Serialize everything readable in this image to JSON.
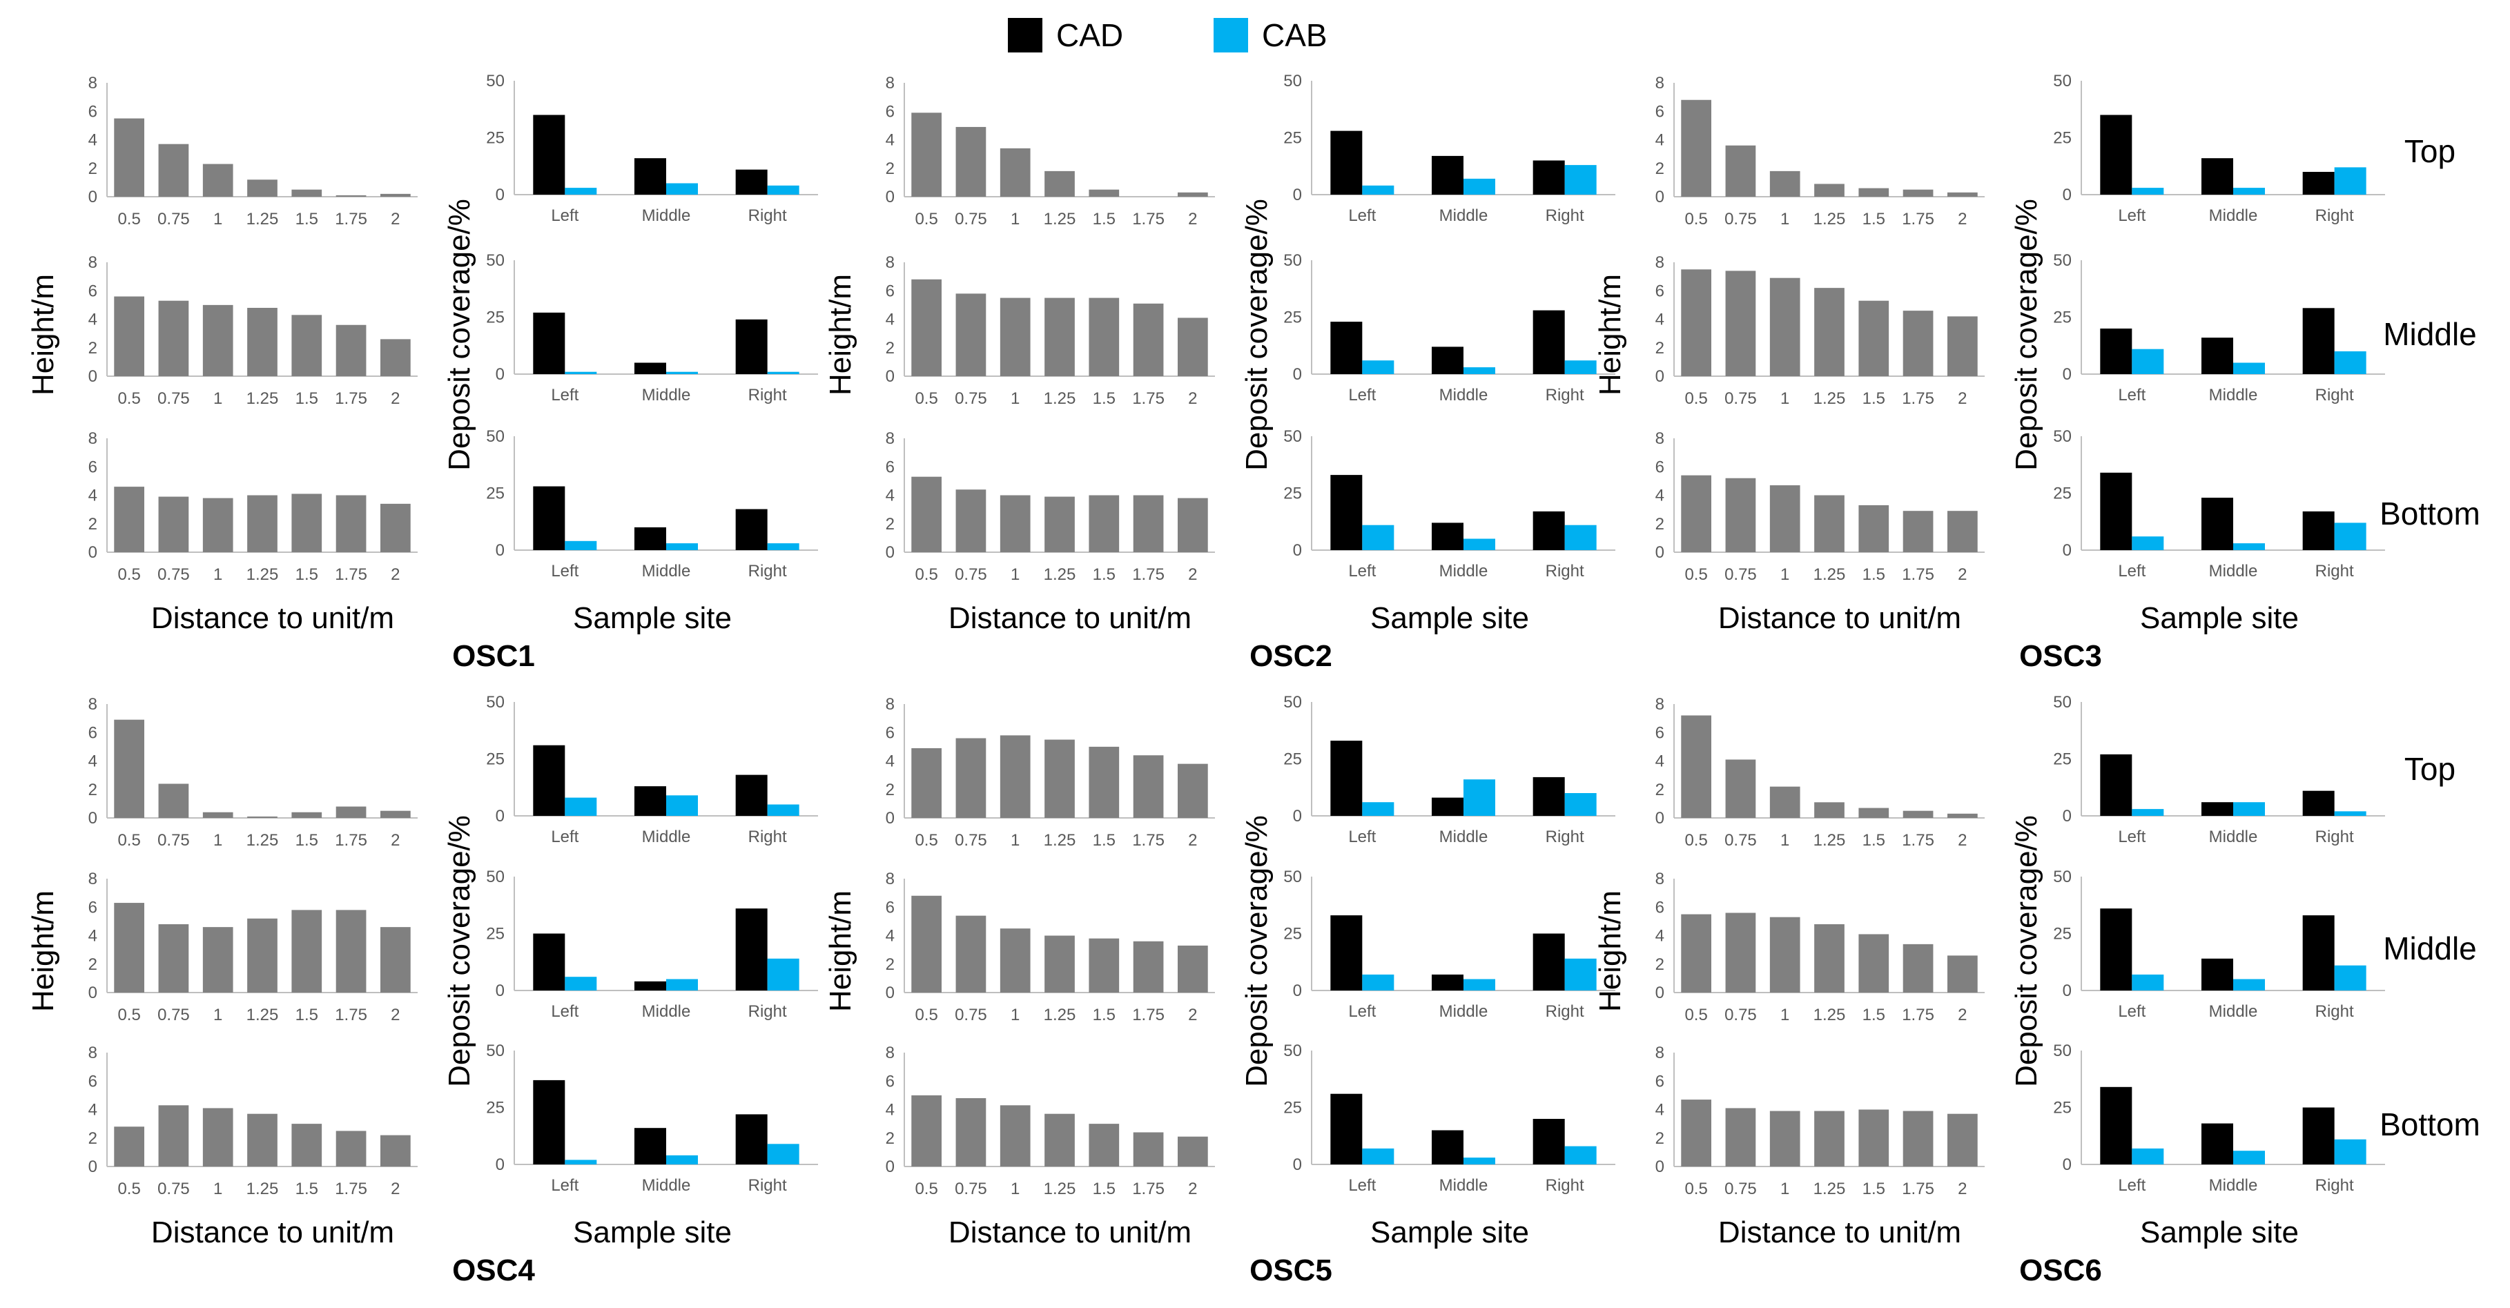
{
  "colors": {
    "bar": "#808080",
    "cad": "#000000",
    "cab": "#00b0f0",
    "axis": "#bfbfbf",
    "text": "#595959",
    "label": "#000000"
  },
  "legend": {
    "cad_label": "CAD",
    "cab_label": "CAB"
  },
  "labels": {
    "height_axis": "Height/m",
    "coverage_axis": "Deposit coverage/%",
    "distance_axis": "Distance to unit/m",
    "site_axis": "Sample site",
    "rows": [
      "Top",
      "Middle",
      "Bottom"
    ]
  },
  "chart_data": {
    "type": "bar",
    "distance_categories": [
      "0.5",
      "0.75",
      "1",
      "1.25",
      "1.5",
      "1.75",
      "2"
    ],
    "site_categories": [
      "Left",
      "Middle",
      "Right"
    ],
    "height_ylim": [
      0,
      8
    ],
    "height_ticks": [
      0,
      2,
      4,
      6,
      8
    ],
    "coverage_ylim": [
      0,
      50
    ],
    "coverage_ticks": [
      0,
      25,
      50
    ],
    "panels": [
      {
        "name": "OSC1",
        "heights": [
          [
            5.5,
            3.7,
            2.3,
            1.2,
            0.5,
            0.1,
            0.2
          ],
          [
            5.6,
            5.3,
            5.0,
            4.8,
            4.3,
            3.6,
            2.6
          ],
          [
            4.6,
            3.9,
            3.8,
            4.0,
            4.1,
            4.0,
            3.4
          ]
        ],
        "cad": [
          [
            35,
            16,
            11
          ],
          [
            27,
            5,
            24
          ],
          [
            28,
            10,
            18
          ]
        ],
        "cab": [
          [
            3,
            5,
            4
          ],
          [
            1,
            1,
            1
          ],
          [
            4,
            3,
            3
          ]
        ]
      },
      {
        "name": "OSC2",
        "heights": [
          [
            5.9,
            4.9,
            3.4,
            1.8,
            0.5,
            0.0,
            0.3
          ],
          [
            6.8,
            5.8,
            5.5,
            5.5,
            5.5,
            5.1,
            4.1
          ],
          [
            5.3,
            4.4,
            4.0,
            3.9,
            4.0,
            4.0,
            3.8
          ]
        ],
        "cad": [
          [
            28,
            17,
            15
          ],
          [
            23,
            12,
            28
          ],
          [
            33,
            12,
            17
          ]
        ],
        "cab": [
          [
            4,
            7,
            13
          ],
          [
            6,
            3,
            6
          ],
          [
            11,
            5,
            11
          ]
        ]
      },
      {
        "name": "OSC3",
        "heights": [
          [
            6.8,
            3.6,
            1.8,
            0.9,
            0.6,
            0.5,
            0.3
          ],
          [
            7.5,
            7.4,
            6.9,
            6.2,
            5.3,
            4.6,
            4.2
          ],
          [
            5.4,
            5.2,
            4.7,
            4.0,
            3.3,
            2.9,
            2.9
          ]
        ],
        "cad": [
          [
            35,
            16,
            10
          ],
          [
            20,
            16,
            29
          ],
          [
            34,
            23,
            17
          ]
        ],
        "cab": [
          [
            3,
            3,
            12
          ],
          [
            11,
            5,
            10
          ],
          [
            6,
            3,
            12
          ]
        ]
      },
      {
        "name": "OSC4",
        "heights": [
          [
            6.9,
            2.4,
            0.4,
            0.1,
            0.4,
            0.8,
            0.5
          ],
          [
            6.3,
            4.8,
            4.6,
            5.2,
            5.8,
            5.8,
            4.6
          ],
          [
            2.8,
            4.3,
            4.1,
            3.7,
            3.0,
            2.5,
            2.2
          ]
        ],
        "cad": [
          [
            31,
            13,
            18
          ],
          [
            25,
            4,
            36
          ],
          [
            37,
            16,
            22
          ]
        ],
        "cab": [
          [
            8,
            9,
            5
          ],
          [
            6,
            5,
            14
          ],
          [
            2,
            4,
            9
          ]
        ]
      },
      {
        "name": "OSC5",
        "heights": [
          [
            4.9,
            5.6,
            5.8,
            5.5,
            5.0,
            4.4,
            3.8
          ],
          [
            6.8,
            5.4,
            4.5,
            4.0,
            3.8,
            3.6,
            3.3
          ],
          [
            5.0,
            4.8,
            4.3,
            3.7,
            3.0,
            2.4,
            2.1
          ]
        ],
        "cad": [
          [
            33,
            8,
            17
          ],
          [
            33,
            7,
            25
          ],
          [
            31,
            15,
            20
          ]
        ],
        "cab": [
          [
            6,
            16,
            10
          ],
          [
            7,
            5,
            14
          ],
          [
            7,
            3,
            8
          ]
        ]
      },
      {
        "name": "OSC6",
        "heights": [
          [
            7.2,
            4.1,
            2.2,
            1.1,
            0.7,
            0.5,
            0.3
          ],
          [
            5.5,
            5.6,
            5.3,
            4.8,
            4.1,
            3.4,
            2.6
          ],
          [
            4.7,
            4.1,
            3.9,
            3.9,
            4.0,
            3.9,
            3.7
          ]
        ],
        "cad": [
          [
            27,
            6,
            11
          ],
          [
            36,
            14,
            33
          ],
          [
            34,
            18,
            25
          ]
        ],
        "cab": [
          [
            3,
            6,
            2
          ],
          [
            7,
            5,
            11
          ],
          [
            7,
            6,
            11
          ]
        ]
      }
    ]
  }
}
